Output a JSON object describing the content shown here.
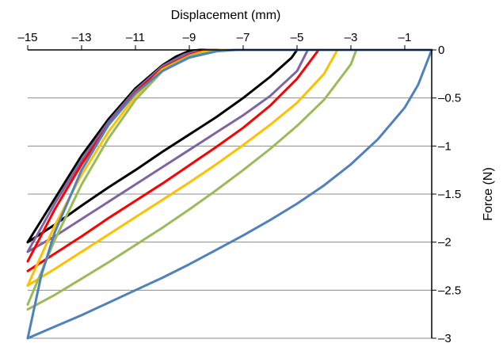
{
  "chart_data": {
    "type": "line",
    "title": "",
    "xlabel": "Displacement (mm)",
    "ylabel": "Force (N)",
    "x_axis_position": "top",
    "y_axis_position": "right",
    "xlim": [
      -15,
      0
    ],
    "ylim": [
      -3,
      0
    ],
    "x_ticks": [
      -15,
      -13,
      -11,
      -9,
      -7,
      -5,
      -3,
      -1
    ],
    "x_tick_labels": [
      "–15",
      "–13",
      "–11",
      "–9",
      "–7",
      "–5",
      "–3",
      "–1"
    ],
    "y_ticks": [
      0,
      -0.5,
      -1,
      -1.5,
      -2,
      -2.5,
      -3
    ],
    "y_tick_labels": [
      "0",
      "–0.5",
      "–1",
      "–1.5",
      "–2",
      "–2.5",
      "–3"
    ],
    "grid": "horizontal",
    "legend": "none",
    "series": [
      {
        "color": "#000000",
        "x": [
          -15,
          -14,
          -13,
          -12,
          -11,
          -10,
          -9.5,
          -9.0,
          -8.6,
          -8.0,
          -7,
          -6.0,
          -5.0
        ],
        "y": [
          -2.0,
          -1.55,
          -1.1,
          -0.72,
          -0.4,
          -0.16,
          -0.07,
          -0.01,
          0,
          0,
          0,
          0,
          0
        ]
      },
      {
        "color": "#000000",
        "x": [
          -15,
          -14,
          -13,
          -12,
          -11,
          -10,
          -9,
          -8,
          -7,
          -6.0,
          -5.2,
          -5.0
        ],
        "y": [
          -2.0,
          -1.82,
          -1.62,
          -1.43,
          -1.25,
          -1.06,
          -0.88,
          -0.7,
          -0.5,
          -0.28,
          -0.08,
          0
        ]
      },
      {
        "color": "#8064a2",
        "x": [
          -15,
          -14,
          -13,
          -12,
          -11,
          -10,
          -9.2,
          -8.7,
          -8.3,
          -7.5,
          -6.5,
          -5.5,
          -4.6
        ],
        "y": [
          -2.1,
          -1.6,
          -1.15,
          -0.75,
          -0.42,
          -0.17,
          -0.05,
          -0.01,
          0,
          0,
          0,
          0,
          0
        ]
      },
      {
        "color": "#8064a2",
        "x": [
          -15,
          -14,
          -13,
          -12,
          -11,
          -10,
          -9,
          -8,
          -7,
          -6,
          -5,
          -4.6
        ],
        "y": [
          -2.1,
          -1.94,
          -1.76,
          -1.58,
          -1.4,
          -1.22,
          -1.04,
          -0.86,
          -0.68,
          -0.48,
          -0.22,
          0
        ]
      },
      {
        "color": "#ff0000",
        "x": [
          -15,
          -14,
          -13,
          -12,
          -11,
          -10,
          -9,
          -8.5,
          -8.0,
          -7.0,
          -6.0,
          -5.0,
          -4.2
        ],
        "y": [
          -2.2,
          -1.66,
          -1.19,
          -0.78,
          -0.44,
          -0.19,
          -0.05,
          -0.01,
          0,
          0,
          0,
          0,
          0
        ]
      },
      {
        "color": "#ff0000",
        "x": [
          -15,
          -14,
          -13,
          -12,
          -11,
          -10,
          -9,
          -8,
          -7,
          -6,
          -5,
          -4.2
        ],
        "y": [
          -2.3,
          -2.12,
          -1.94,
          -1.75,
          -1.57,
          -1.39,
          -1.2,
          -1.01,
          -0.81,
          -0.58,
          -0.3,
          0
        ]
      },
      {
        "color": "#ffc000",
        "x": [
          -15,
          -14,
          -13,
          -12,
          -11,
          -10,
          -9,
          -8.4,
          -7.8,
          -7.0,
          -5.5,
          -4.0,
          -3.5
        ],
        "y": [
          -2.45,
          -1.83,
          -1.3,
          -0.85,
          -0.48,
          -0.2,
          -0.06,
          -0.01,
          0,
          0,
          0,
          0,
          0
        ]
      },
      {
        "color": "#ffc000",
        "x": [
          -15,
          -14,
          -13,
          -12,
          -11,
          -10,
          -9,
          -8,
          -7,
          -6,
          -5,
          -4,
          -3.5
        ],
        "y": [
          -2.45,
          -2.28,
          -2.1,
          -1.92,
          -1.74,
          -1.56,
          -1.38,
          -1.19,
          -0.99,
          -0.78,
          -0.55,
          -0.25,
          0
        ]
      },
      {
        "color": "#9bbb59",
        "x": [
          -15,
          -14,
          -13,
          -12,
          -11,
          -10,
          -9,
          -8.0,
          -7.2,
          -6.0,
          -4.5,
          -2.8
        ],
        "y": [
          -2.65,
          -1.98,
          -1.4,
          -0.92,
          -0.52,
          -0.22,
          -0.06,
          -0.01,
          0,
          0,
          0,
          0
        ]
      },
      {
        "color": "#9bbb59",
        "x": [
          -15,
          -14,
          -13,
          -12,
          -11,
          -10,
          -9,
          -8,
          -7,
          -6,
          -5,
          -4,
          -3,
          -2.8
        ],
        "y": [
          -2.7,
          -2.55,
          -2.38,
          -2.21,
          -2.03,
          -1.85,
          -1.66,
          -1.46,
          -1.25,
          -1.03,
          -0.79,
          -0.52,
          -0.15,
          0
        ]
      },
      {
        "color": "#4f81bd",
        "x": [
          -15,
          -14.5,
          -14,
          -13,
          -12,
          -11,
          -10,
          -9,
          -8,
          -7.3,
          -6.5,
          -5.0,
          -3.0,
          -1.0,
          0
        ],
        "y": [
          -3.0,
          -2.35,
          -1.9,
          -1.25,
          -0.78,
          -0.45,
          -0.22,
          -0.08,
          -0.015,
          0,
          0,
          0,
          0,
          0,
          0
        ]
      },
      {
        "color": "#4f81bd",
        "x": [
          -15,
          -14,
          -13,
          -12,
          -11,
          -10,
          -9,
          -8,
          -7,
          -6,
          -5,
          -4,
          -3,
          -2,
          -1,
          -0.5,
          0
        ],
        "y": [
          -3.0,
          -2.88,
          -2.76,
          -2.63,
          -2.5,
          -2.37,
          -2.23,
          -2.08,
          -1.93,
          -1.77,
          -1.6,
          -1.41,
          -1.19,
          -0.93,
          -0.6,
          -0.36,
          0
        ]
      }
    ]
  }
}
